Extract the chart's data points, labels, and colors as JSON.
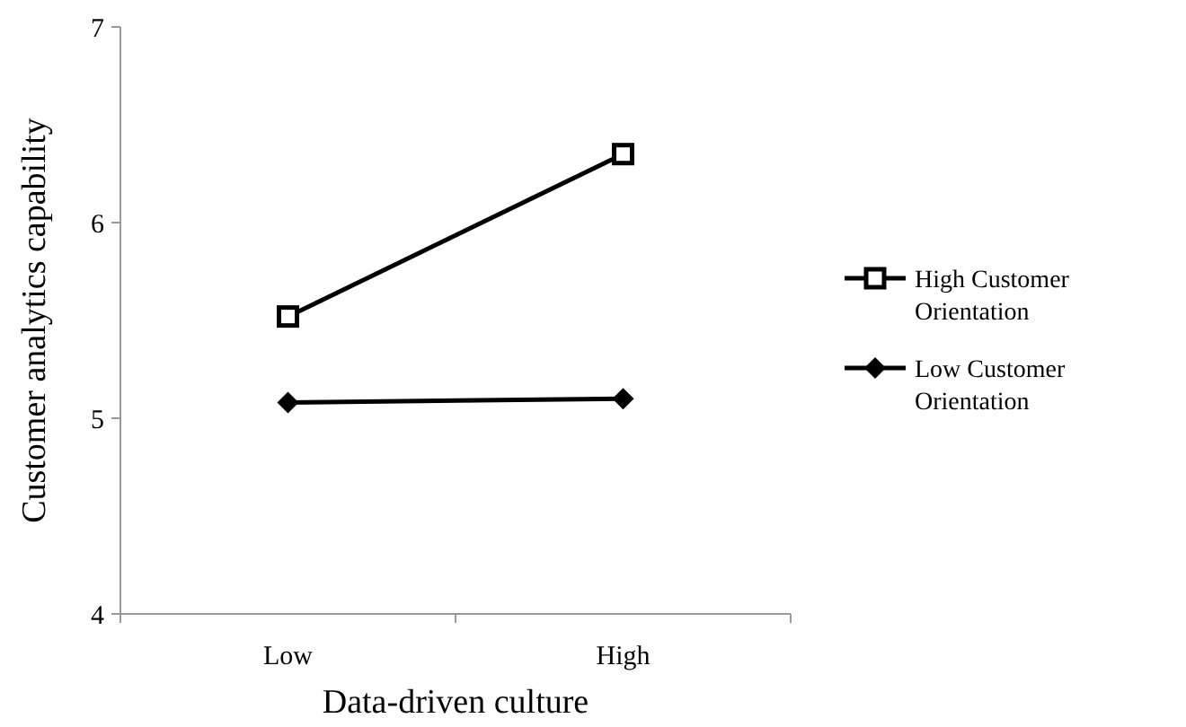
{
  "chart_data": {
    "type": "line",
    "xlabel": "Data-driven culture",
    "ylabel": "Customer analytics capability",
    "categories": [
      "Low",
      "High"
    ],
    "series": [
      {
        "name": "High Customer Orientation",
        "color": "#000000",
        "values": [
          5.52,
          6.35
        ],
        "marker": "square"
      },
      {
        "name": "Low Customer Orientation",
        "color": "#000000",
        "values": [
          5.08,
          5.1
        ],
        "marker": "diamond"
      }
    ],
    "ylim": [
      4,
      7
    ],
    "yticks": [
      4,
      5,
      6,
      7
    ],
    "grid": false,
    "legend": "right",
    "line_style": "solid"
  }
}
